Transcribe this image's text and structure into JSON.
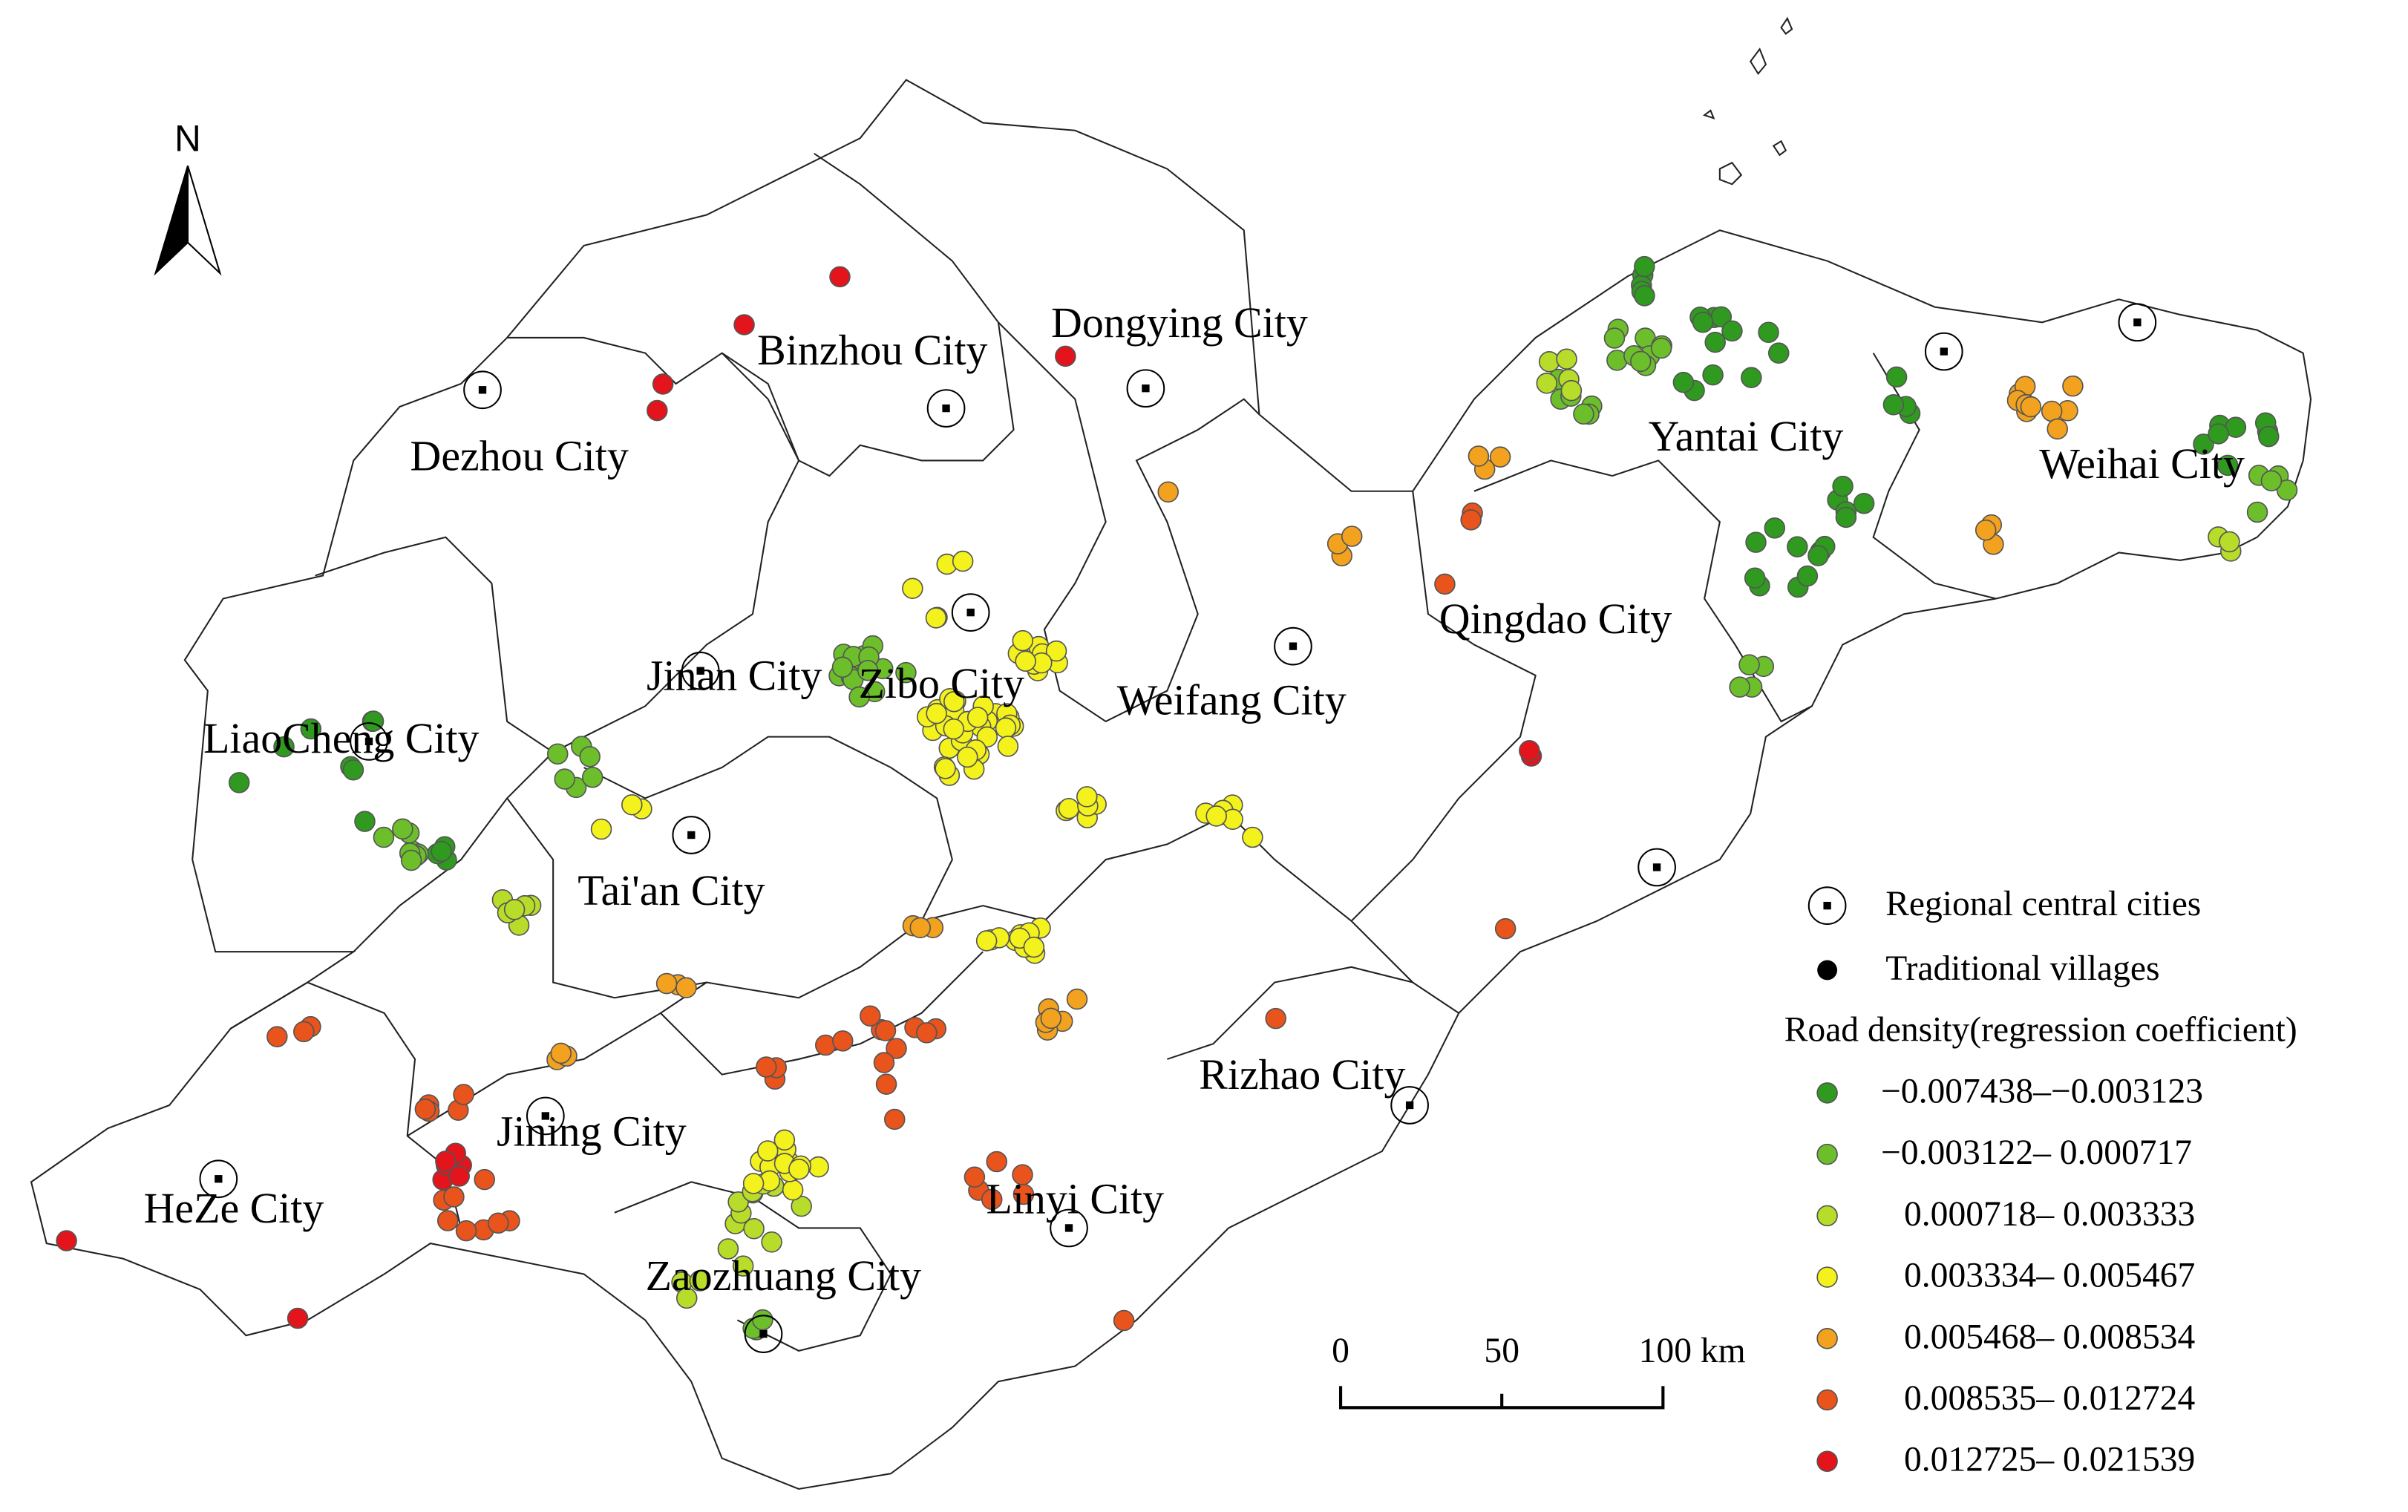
{
  "north_arrow": "N",
  "cities": [
    {
      "label": "Dezhou City"
    },
    {
      "label": "Binzhou City"
    },
    {
      "label": "Dongying City"
    },
    {
      "label": "Yantai City"
    },
    {
      "label": "Weihai City"
    },
    {
      "label": "Jinan City"
    },
    {
      "label": "Zibo City"
    },
    {
      "label": "Weifang City"
    },
    {
      "label": "Qingdao City"
    },
    {
      "label": "LiaoCheng City"
    },
    {
      "label": "Tai'an City"
    },
    {
      "label": "Rizhao City"
    },
    {
      "label": "Jining City"
    },
    {
      "label": "HeZe City"
    },
    {
      "label": "Linyi City"
    },
    {
      "label": "Zaozhuang City"
    }
  ],
  "legend": {
    "items": [
      {
        "label": "Regional central cities"
      },
      {
        "label": "Traditional villages"
      }
    ],
    "title": "Road density(regression coefficient)",
    "classes": [
      {
        "label": "−0.007438–−0.003123",
        "color": "#2f9a1f"
      },
      {
        "label": "−0.003122– 0.000717",
        "color": "#6cbf2a"
      },
      {
        "label": "0.000718– 0.003333",
        "color": "#b8dc2a"
      },
      {
        "label": "0.003334– 0.005467",
        "color": "#f4f21c"
      },
      {
        "label": "0.005468– 0.008534",
        "color": "#f2a21e"
      },
      {
        "label": "0.008535– 0.012724",
        "color": "#e9531c"
      },
      {
        "label": "0.012725– 0.021539",
        "color": "#e3141b"
      }
    ]
  },
  "scale_bar": {
    "ticks": [
      "0",
      "50",
      "100 km"
    ]
  }
}
